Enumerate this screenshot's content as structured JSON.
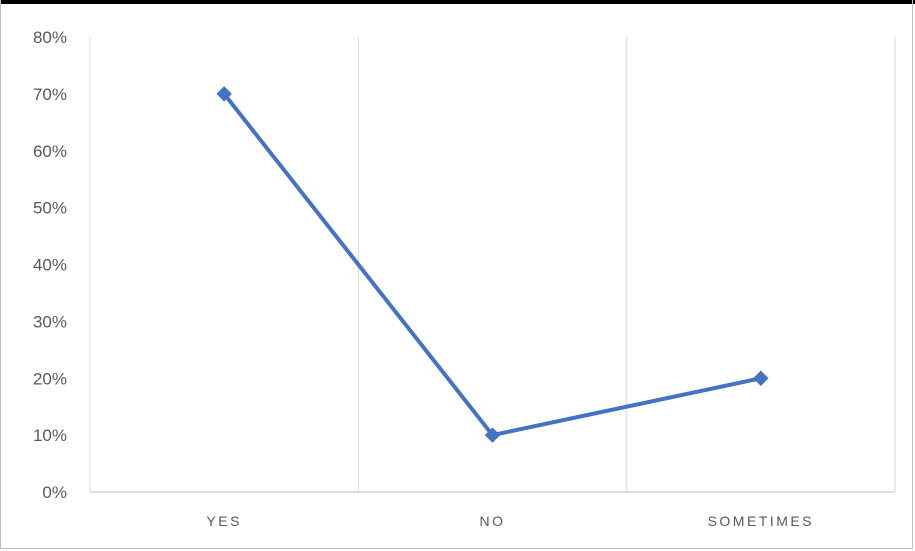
{
  "chart_data": {
    "type": "line",
    "title": "",
    "xlabel": "",
    "ylabel": "",
    "categories": [
      "YES",
      "NO",
      "SOMETIMES"
    ],
    "series": [
      {
        "values": [
          0.7,
          0.1,
          0.2
        ]
      }
    ],
    "ylim": [
      0,
      0.8
    ],
    "yticks": [
      0,
      0.1,
      0.2,
      0.3,
      0.4,
      0.5,
      0.6,
      0.7,
      0.8
    ],
    "ytick_labels": [
      "0%",
      "10%",
      "20%",
      "30%",
      "40%",
      "50%",
      "60%",
      "70%",
      "80%"
    ],
    "grid": "vertical",
    "legend": "none",
    "colors": {
      "line": "#4472c4",
      "grid": "#d9d9d9",
      "axis": "#bfbfbf",
      "text": "#595959"
    }
  }
}
